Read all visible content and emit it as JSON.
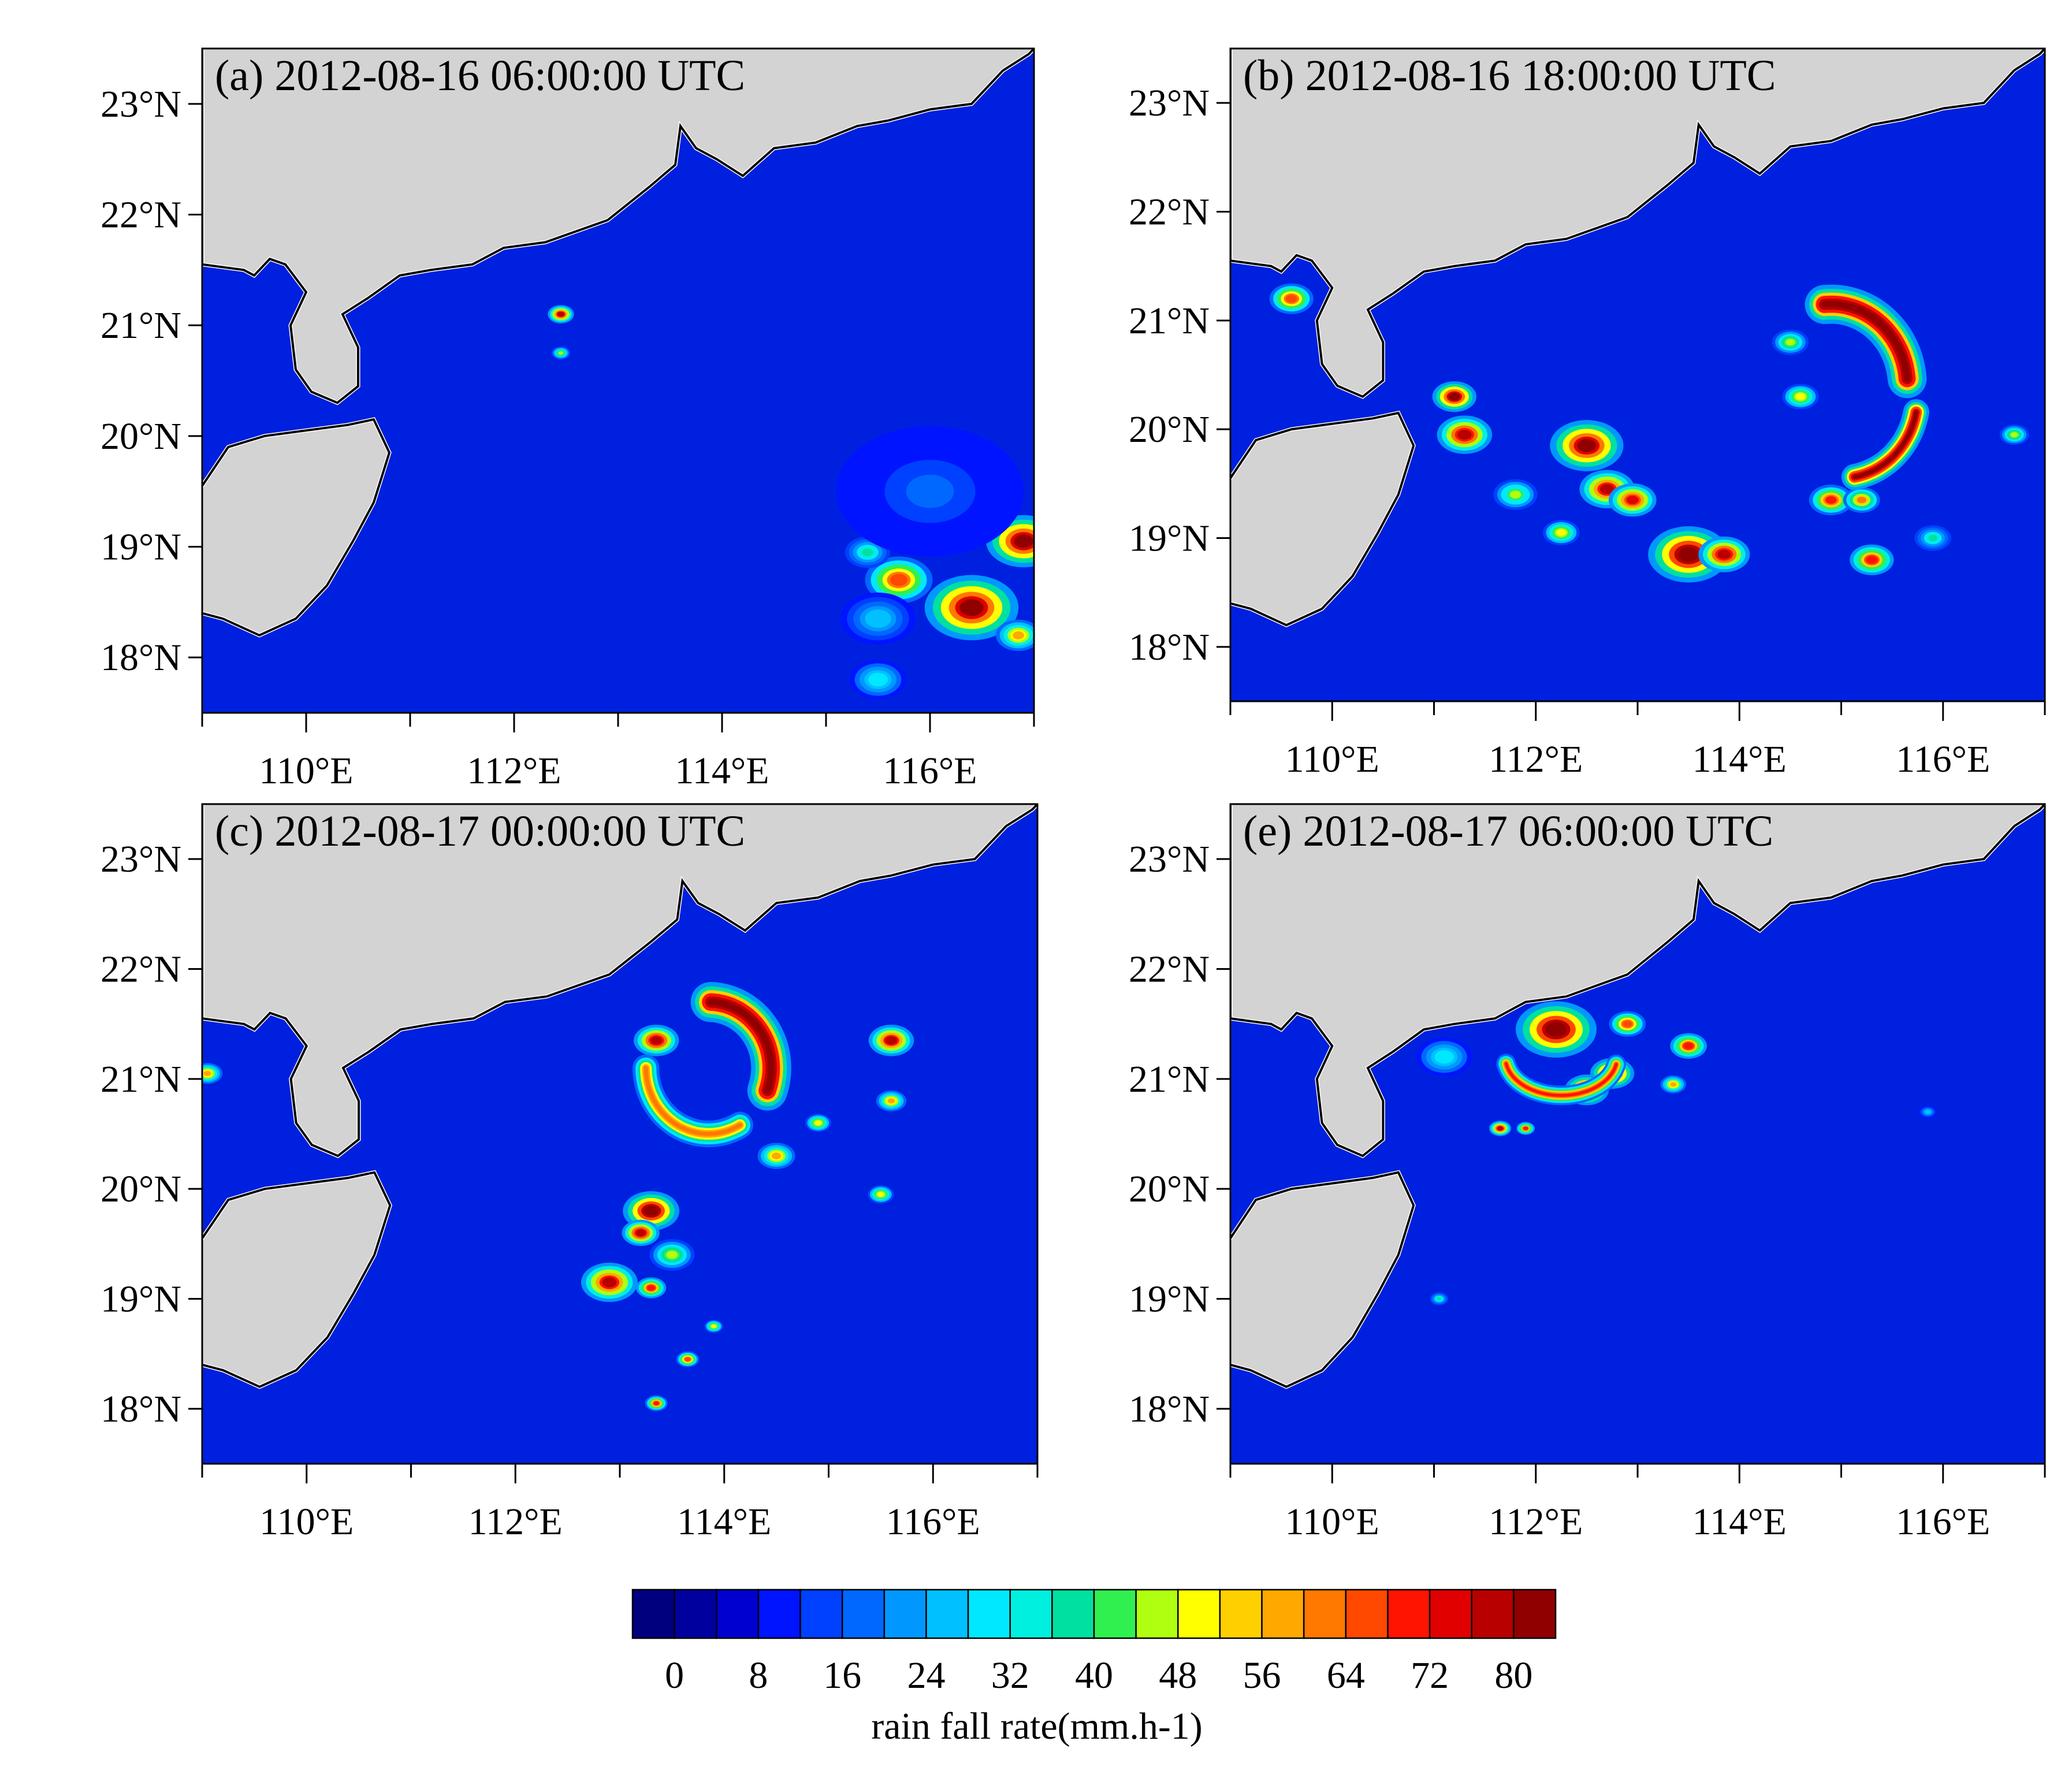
{
  "panels": [
    {
      "id": "a",
      "title": "(a) 2012-08-16 06:00:00 UTC",
      "cells": [
        {
          "lon": 112.45,
          "lat": 21.1,
          "r": 0.07,
          "v": 70
        },
        {
          "lon": 112.45,
          "lat": 20.75,
          "r": 0.05,
          "v": 40
        },
        {
          "lon": 116.4,
          "lat": 18.45,
          "r": 0.25,
          "v": 75
        },
        {
          "lon": 115.7,
          "lat": 18.7,
          "r": 0.18,
          "v": 60
        },
        {
          "lon": 116.9,
          "lat": 19.05,
          "r": 0.2,
          "v": 75
        },
        {
          "lon": 115.4,
          "lat": 18.95,
          "r": 0.12,
          "v": 30
        },
        {
          "lon": 116.85,
          "lat": 18.2,
          "r": 0.12,
          "v": 50
        },
        {
          "lon": 115.5,
          "lat": 18.35,
          "r": 0.2,
          "v": 20
        },
        {
          "lon": 116.0,
          "lat": 19.5,
          "r": 0.5,
          "v": 10
        },
        {
          "lon": 115.5,
          "lat": 17.8,
          "r": 0.15,
          "v": 25
        }
      ]
    },
    {
      "id": "b",
      "title": "(b) 2012-08-16 18:00:00 UTC",
      "cells": [
        {
          "lon": 111.2,
          "lat": 20.3,
          "r": 0.12,
          "v": 75
        },
        {
          "lon": 111.3,
          "lat": 19.95,
          "r": 0.15,
          "v": 72
        },
        {
          "lon": 112.5,
          "lat": 19.85,
          "r": 0.2,
          "v": 75
        },
        {
          "lon": 112.7,
          "lat": 19.45,
          "r": 0.15,
          "v": 70
        },
        {
          "lon": 112.95,
          "lat": 19.35,
          "r": 0.13,
          "v": 68
        },
        {
          "lon": 113.5,
          "lat": 18.85,
          "r": 0.22,
          "v": 78
        },
        {
          "lon": 113.85,
          "lat": 18.85,
          "r": 0.14,
          "v": 72
        },
        {
          "lon": 115.3,
          "lat": 18.8,
          "r": 0.12,
          "v": 65
        },
        {
          "lon": 114.9,
          "lat": 19.35,
          "r": 0.12,
          "v": 62
        },
        {
          "lon": 115.2,
          "lat": 19.35,
          "r": 0.1,
          "v": 55
        },
        {
          "lon": 111.8,
          "lat": 19.4,
          "r": 0.12,
          "v": 38
        },
        {
          "lon": 112.25,
          "lat": 19.05,
          "r": 0.1,
          "v": 45
        },
        {
          "lon": 114.6,
          "lat": 20.3,
          "r": 0.1,
          "v": 45
        },
        {
          "lon": 114.5,
          "lat": 20.8,
          "r": 0.1,
          "v": 40
        },
        {
          "lon": 116.7,
          "lat": 19.95,
          "r": 0.08,
          "v": 40
        },
        {
          "lon": 109.6,
          "lat": 21.2,
          "r": 0.12,
          "v": 60
        },
        {
          "lon": 115.9,
          "lat": 19.0,
          "r": 0.1,
          "v": 30
        }
      ],
      "arcs": [
        {
          "cx": 115.0,
          "cy": 20.3,
          "rx": 0.75,
          "ry": 0.75,
          "a0": -80,
          "a1": -10,
          "v": 75,
          "w": 0.08
        },
        {
          "cx": 114.9,
          "cy": 20.4,
          "rx": 0.75,
          "ry": 0.75,
          "a0": 5,
          "a1": 95,
          "v": 80,
          "w": 0.12
        }
      ]
    },
    {
      "id": "c",
      "title": "(c) 2012-08-17 00:00:00 UTC",
      "cells": [
        {
          "lon": 113.35,
          "lat": 21.35,
          "r": 0.12,
          "v": 72
        },
        {
          "lon": 115.6,
          "lat": 21.35,
          "r": 0.12,
          "v": 70
        },
        {
          "lon": 115.6,
          "lat": 20.8,
          "r": 0.08,
          "v": 50
        },
        {
          "lon": 113.3,
          "lat": 19.8,
          "r": 0.15,
          "v": 78
        },
        {
          "lon": 113.2,
          "lat": 19.6,
          "r": 0.1,
          "v": 72
        },
        {
          "lon": 112.9,
          "lat": 19.15,
          "r": 0.15,
          "v": 70
        },
        {
          "lon": 113.3,
          "lat": 19.1,
          "r": 0.08,
          "v": 65
        },
        {
          "lon": 113.65,
          "lat": 18.45,
          "r": 0.06,
          "v": 60
        },
        {
          "lon": 113.35,
          "lat": 18.05,
          "r": 0.06,
          "v": 62
        },
        {
          "lon": 113.9,
          "lat": 18.75,
          "r": 0.05,
          "v": 45
        },
        {
          "lon": 115.5,
          "lat": 19.95,
          "r": 0.07,
          "v": 45
        },
        {
          "lon": 114.9,
          "lat": 20.6,
          "r": 0.07,
          "v": 45
        },
        {
          "lon": 114.5,
          "lat": 20.3,
          "r": 0.1,
          "v": 50
        },
        {
          "lon": 109.05,
          "lat": 21.05,
          "r": 0.08,
          "v": 50
        },
        {
          "lon": 113.5,
          "lat": 19.4,
          "r": 0.12,
          "v": 40
        }
      ],
      "arcs": [
        {
          "cx": 113.85,
          "cy": 21.1,
          "rx": 0.6,
          "ry": 0.6,
          "a0": -20,
          "a1": 90,
          "v": 80,
          "w": 0.12
        },
        {
          "cx": 113.85,
          "cy": 21.1,
          "rx": 0.6,
          "ry": 0.6,
          "a0": 180,
          "a1": 300,
          "v": 55,
          "w": 0.08
        }
      ]
    },
    {
      "id": "e",
      "title": "(e) 2012-08-17 06:00:00 UTC",
      "cells": [
        {
          "lon": 112.2,
          "lat": 21.45,
          "r": 0.22,
          "v": 78
        },
        {
          "lon": 112.5,
          "lat": 20.9,
          "r": 0.12,
          "v": 80
        },
        {
          "lon": 112.75,
          "lat": 21.05,
          "r": 0.12,
          "v": 75
        },
        {
          "lon": 111.65,
          "lat": 20.55,
          "r": 0.06,
          "v": 70
        },
        {
          "lon": 111.9,
          "lat": 20.55,
          "r": 0.05,
          "v": 65
        },
        {
          "lon": 113.5,
          "lat": 21.3,
          "r": 0.1,
          "v": 65
        },
        {
          "lon": 113.35,
          "lat": 20.95,
          "r": 0.07,
          "v": 50
        },
        {
          "lon": 111.1,
          "lat": 21.2,
          "r": 0.15,
          "v": 25
        },
        {
          "lon": 112.9,
          "lat": 21.5,
          "r": 0.1,
          "v": 60
        },
        {
          "lon": 111.05,
          "lat": 19.0,
          "r": 0.05,
          "v": 30
        },
        {
          "lon": 115.85,
          "lat": 20.7,
          "r": 0.05,
          "v": 20
        }
      ],
      "arcs": [
        {
          "cx": 112.25,
          "cy": 21.2,
          "rx": 0.55,
          "ry": 0.35,
          "a0": 190,
          "a1": 350,
          "v": 62,
          "w": 0.06
        }
      ]
    }
  ],
  "axes": {
    "lon_range": [
      109,
      117
    ],
    "lat_range": [
      17.5,
      23.5
    ],
    "x_ticks": [
      110,
      112,
      114,
      116
    ],
    "y_ticks": [
      18,
      19,
      20,
      21,
      22,
      23
    ],
    "x_tick_labels": [
      "110°E",
      "112°E",
      "114°E",
      "116°E"
    ],
    "y_tick_labels": [
      "18°N",
      "19°N",
      "20°N",
      "21°N",
      "22°N",
      "23°N"
    ]
  },
  "colorbar": {
    "label": "rain fall rate(mm.h-1)",
    "tick_labels": [
      "0",
      "8",
      "16",
      "24",
      "32",
      "40",
      "48",
      "56",
      "64",
      "72",
      "80"
    ],
    "colors": [
      "#00007f",
      "#00009f",
      "#0000cf",
      "#0014ff",
      "#0040ff",
      "#0068ff",
      "#0098ff",
      "#00c0ff",
      "#00e8ff",
      "#00f0e0",
      "#00e0a0",
      "#30f050",
      "#b0ff10",
      "#ffff00",
      "#ffd000",
      "#ffa800",
      "#ff7800",
      "#ff4800",
      "#ff1400",
      "#e00000",
      "#b80000",
      "#900000"
    ]
  },
  "colors": {
    "ocean": "#0020e0",
    "land": "#d3d3d3",
    "coast": "#000000",
    "white_edge": "#ffffff"
  }
}
